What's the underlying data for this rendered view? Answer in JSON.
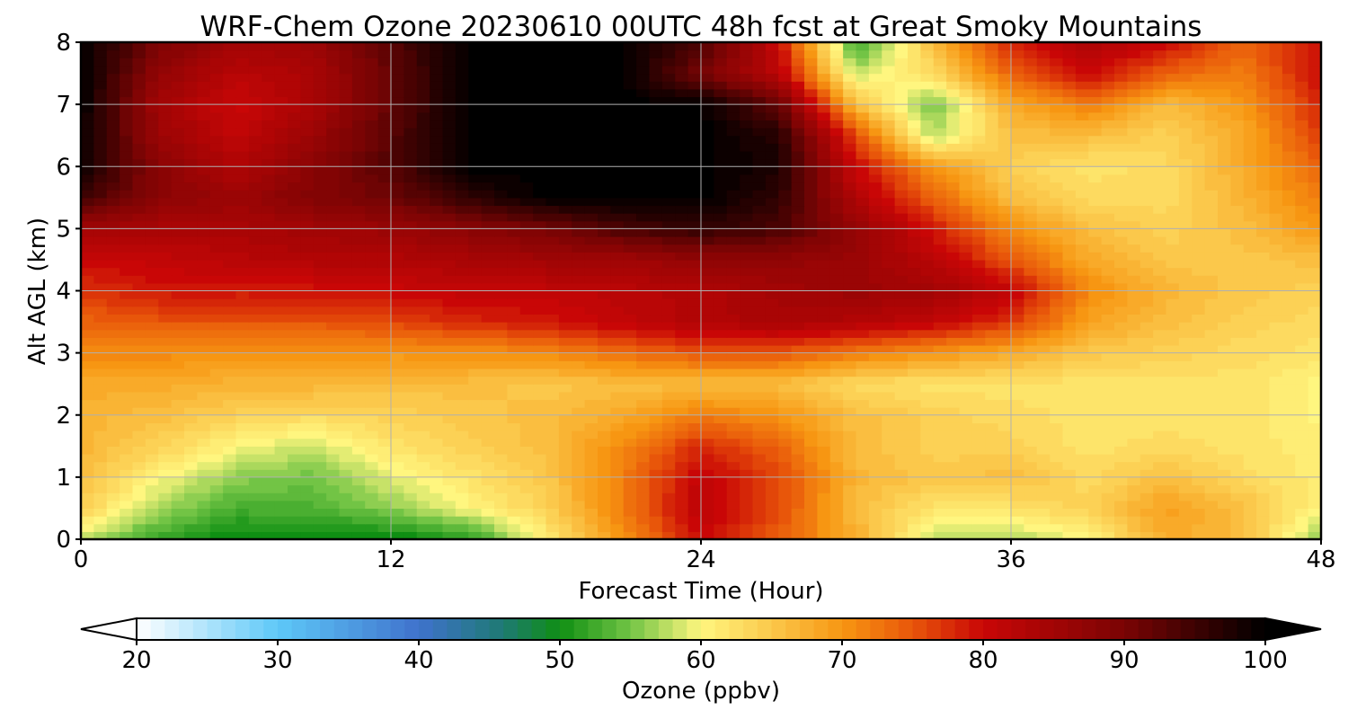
{
  "chart_data": {
    "type": "heatmap",
    "title": "WRF-Chem Ozone  20230610 00UTC 48h fcst at Great Smoky Mountains",
    "xlabel": "Forecast Time (Hour)",
    "ylabel": "Alt AGL (km)",
    "xlim": [
      0,
      48
    ],
    "ylim": [
      0,
      8
    ],
    "xticks": [
      0,
      12,
      24,
      36,
      48
    ],
    "yticks": [
      0,
      1,
      2,
      3,
      4,
      5,
      6,
      7,
      8
    ],
    "grid": true,
    "x": [
      0,
      3,
      6,
      9,
      12,
      15,
      18,
      21,
      24,
      27,
      30,
      33,
      36,
      39,
      42,
      45,
      48
    ],
    "y": [
      0,
      0.5,
      1,
      1.5,
      2,
      2.5,
      3,
      3.5,
      4,
      4.5,
      5,
      5.5,
      6,
      6.5,
      7,
      7.5,
      8
    ],
    "z": [
      [
        58,
        52,
        49,
        49,
        49,
        51,
        61,
        70,
        80,
        74,
        68,
        58,
        57,
        60,
        68,
        66,
        56
      ],
      [
        64,
        57,
        53,
        53,
        56,
        60,
        64,
        72,
        82,
        76,
        66,
        62,
        62,
        64,
        69,
        66,
        60
      ],
      [
        66,
        60,
        56,
        55,
        59,
        62,
        65,
        72,
        81,
        76,
        67,
        65,
        66,
        63,
        66,
        63,
        61
      ],
      [
        67,
        64,
        60,
        58,
        62,
        64,
        66,
        71,
        78,
        74,
        66,
        64,
        64,
        62,
        63,
        62,
        61
      ],
      [
        67,
        66,
        64,
        63,
        64,
        65,
        66,
        68,
        72,
        70,
        66,
        64,
        63,
        62,
        62,
        62,
        60
      ],
      [
        68,
        68,
        67,
        67,
        66,
        66,
        65,
        66,
        66,
        66,
        63,
        62,
        62,
        62,
        62,
        62,
        60
      ],
      [
        71,
        71,
        70,
        70,
        70,
        70,
        71,
        73,
        75,
        75,
        72,
        70,
        68,
        65,
        64,
        63,
        62
      ],
      [
        74,
        75,
        75,
        75,
        76,
        78,
        79,
        81,
        83,
        84,
        83,
        81,
        77,
        69,
        66,
        64,
        63
      ],
      [
        77,
        79,
        79,
        79,
        80,
        81,
        81,
        82,
        83,
        85,
        86,
        85,
        81,
        71,
        67,
        65,
        64
      ],
      [
        80,
        81,
        82,
        83,
        83,
        84,
        85,
        85,
        87,
        87,
        86,
        82,
        75,
        68,
        65,
        65,
        66
      ],
      [
        85,
        84,
        84,
        85,
        86,
        88,
        90,
        94,
        96,
        94,
        87,
        79,
        71,
        66,
        64,
        66,
        70
      ],
      [
        95,
        88,
        86,
        89,
        91,
        96,
        100,
        100,
        100,
        96,
        83,
        74,
        66,
        63,
        63,
        67,
        72
      ],
      [
        99,
        88,
        83,
        88,
        93,
        100,
        100,
        100,
        100,
        98,
        80,
        70,
        64,
        62,
        63,
        68,
        74
      ],
      [
        99,
        86,
        81,
        86,
        93,
        100,
        100,
        100,
        100,
        97,
        76,
        57,
        66,
        66,
        64,
        68,
        77
      ],
      [
        100,
        85,
        80,
        84,
        92,
        100,
        100,
        100,
        100,
        92,
        66,
        55,
        68,
        72,
        66,
        70,
        78
      ],
      [
        100,
        87,
        82,
        84,
        92,
        100,
        100,
        100,
        90,
        82,
        58,
        63,
        74,
        80,
        74,
        72,
        80
      ],
      [
        100,
        90,
        85,
        86,
        93,
        100,
        100,
        100,
        94,
        80,
        52,
        66,
        78,
        84,
        80,
        74,
        80
      ]
    ],
    "colorbar": {
      "label": "Ozone  (ppbv)",
      "min": 20,
      "max": 100,
      "extend": "both",
      "ticks": [
        20,
        30,
        40,
        50,
        60,
        70,
        80,
        90,
        100
      ],
      "stops": [
        {
          "v": 20,
          "c": "#ffffff"
        },
        {
          "v": 30,
          "c": "#5ec8f8"
        },
        {
          "v": 40,
          "c": "#3f72cc"
        },
        {
          "v": 46,
          "c": "#1e7a72"
        },
        {
          "v": 50,
          "c": "#0f8f13"
        },
        {
          "v": 55,
          "c": "#72c445"
        },
        {
          "v": 60,
          "c": "#fff67f"
        },
        {
          "v": 65,
          "c": "#fbc84b"
        },
        {
          "v": 70,
          "c": "#f79612"
        },
        {
          "v": 75,
          "c": "#e8560a"
        },
        {
          "v": 80,
          "c": "#c90606"
        },
        {
          "v": 90,
          "c": "#7a0404"
        },
        {
          "v": 100,
          "c": "#000000"
        }
      ]
    }
  }
}
